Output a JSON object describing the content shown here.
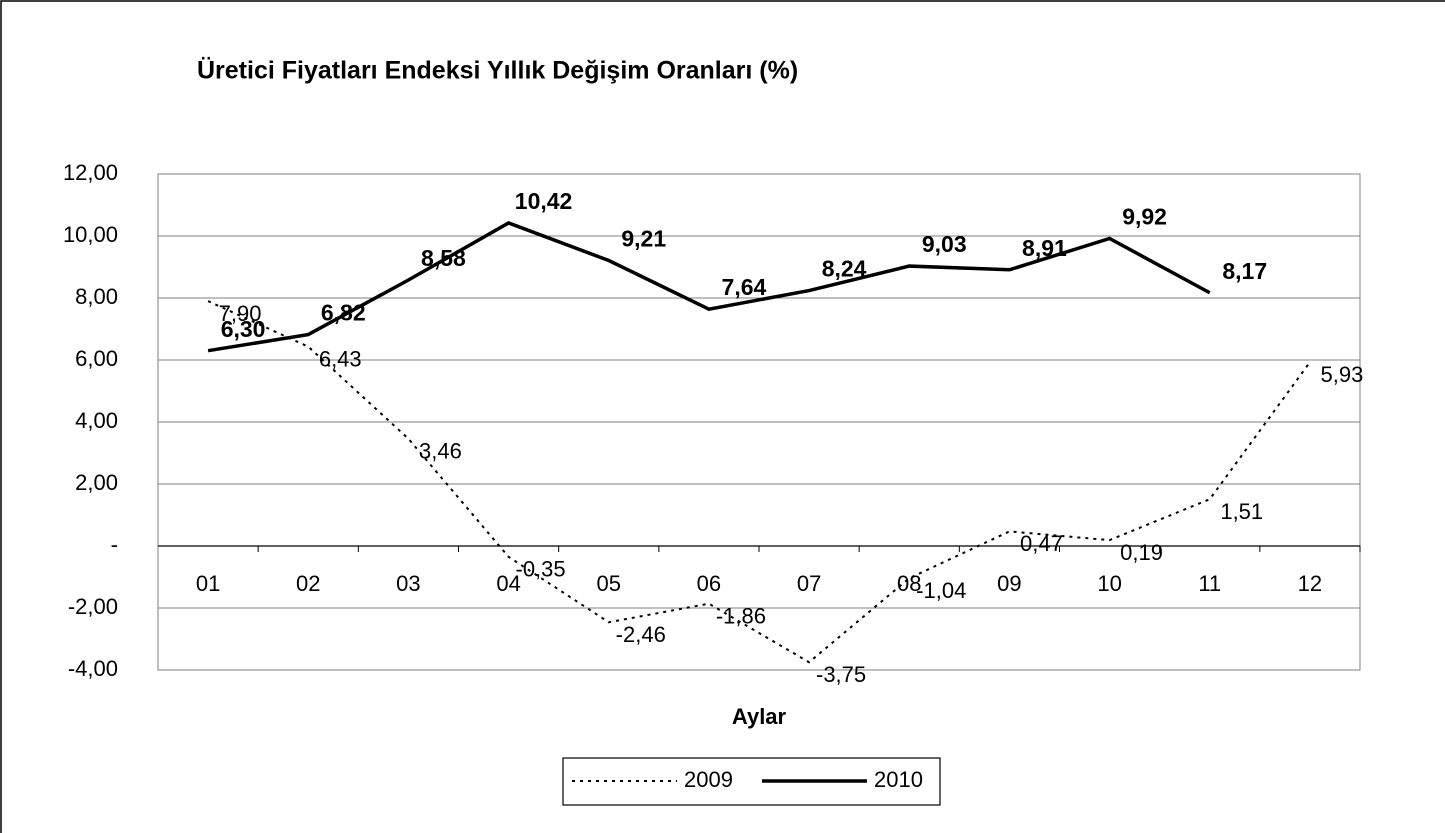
{
  "chart_data": {
    "type": "line",
    "title": "Üretici Fiyatları Endeksi Yıllık Değişim Oranları (%)",
    "x_label": "Aylar",
    "categories": [
      "01",
      "02",
      "03",
      "04",
      "05",
      "06",
      "07",
      "08",
      "09",
      "10",
      "11",
      "12"
    ],
    "series": [
      {
        "name": "2009",
        "color": "#000000",
        "dash": true,
        "values": [
          7.9,
          6.43,
          3.46,
          -0.35,
          -2.46,
          -1.86,
          -3.75,
          -1.04,
          0.47,
          0.19,
          1.51,
          5.93
        ],
        "value_labels": [
          "7,90",
          "6,43",
          "3,46",
          "-0,35",
          "-2,46",
          "-1,86",
          "-3,75",
          "-1,04",
          "0,47",
          "0,19",
          "1,51",
          "5,93"
        ]
      },
      {
        "name": "2010",
        "color": "#000000",
        "dash": false,
        "values": [
          6.3,
          6.82,
          8.58,
          10.42,
          9.21,
          7.64,
          8.24,
          9.03,
          8.91,
          9.92,
          8.17,
          null
        ],
        "value_labels": [
          "6,30",
          "6,82",
          "8,58",
          "10,42",
          "9,21",
          "7,64",
          "8,24",
          "9,03",
          "8,91",
          "9,92",
          "8,17",
          null
        ]
      }
    ],
    "ylim": [
      -4,
      12
    ],
    "yticks": [
      {
        "value": -4,
        "label": "-4,00"
      },
      {
        "value": -2,
        "label": "-2,00"
      },
      {
        "value": 0,
        "label": "-"
      },
      {
        "value": 2,
        "label": "2,00"
      },
      {
        "value": 4,
        "label": "4,00"
      },
      {
        "value": 6,
        "label": "6,00"
      },
      {
        "value": 8,
        "label": "8,00"
      },
      {
        "value": 10,
        "label": "10,00"
      },
      {
        "value": 12,
        "label": "12,00"
      }
    ],
    "grid": true,
    "legend": "bottom"
  }
}
